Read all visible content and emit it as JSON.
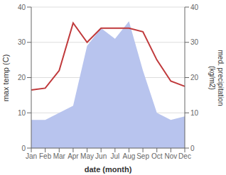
{
  "chart_data": {
    "type": "line",
    "xlabel": "date (month)",
    "ylabel": "max temp (C)",
    "y2label": "med. precipitation\n(kg/m2)",
    "categories": [
      "Jan",
      "Feb",
      "Mar",
      "Apr",
      "May",
      "Jun",
      "Jul",
      "Aug",
      "Sep",
      "Oct",
      "Nov",
      "Dec"
    ],
    "series": [
      {
        "type": "area",
        "axis": "y2",
        "color": "#b8c4ee",
        "values": [
          8,
          8,
          10,
          12,
          29,
          34,
          31,
          36,
          22,
          10,
          8,
          9
        ]
      },
      {
        "type": "line",
        "color": "#c0393b",
        "values": [
          16.5,
          17.0,
          22.0,
          35.5,
          30.0,
          34.0,
          34.0,
          34.0,
          33.0,
          25.0,
          19.0,
          17.5
        ]
      }
    ],
    "ylim": [
      0,
      40
    ],
    "yticks": [
      0,
      10,
      20,
      30,
      40
    ],
    "y2lim": [
      0,
      40
    ],
    "y2ticks": [
      0,
      10,
      20,
      30,
      40
    ],
    "grid": true
  }
}
